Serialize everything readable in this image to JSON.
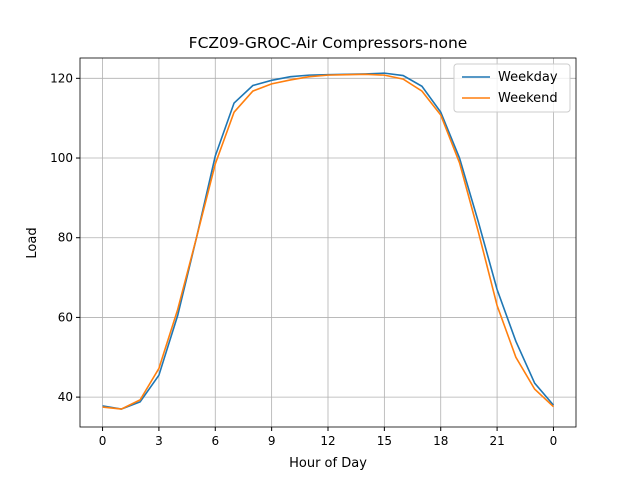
{
  "chart_data": {
    "type": "line",
    "title": "FCZ09-GROC-Air Compressors-none",
    "xlabel": "Hour of Day",
    "ylabel": "Load",
    "x": [
      0,
      1,
      2,
      3,
      4,
      5,
      6,
      7,
      8,
      9,
      10,
      11,
      12,
      13,
      14,
      15,
      16,
      17,
      18,
      19,
      20,
      21,
      22,
      23,
      24
    ],
    "series": [
      {
        "name": "Weekday",
        "color": "#1f77b4",
        "values": [
          37.8,
          37.0,
          38.8,
          45.5,
          60.5,
          80,
          100.5,
          113.8,
          118.2,
          119.5,
          120.4,
          120.8,
          120.9,
          121.0,
          121.1,
          121.3,
          120.7,
          118.0,
          111.5,
          100,
          84,
          67,
          54,
          43.5,
          38
        ]
      },
      {
        "name": "Weekend",
        "color": "#ff7f0e",
        "values": [
          37.5,
          37.0,
          39.3,
          47.2,
          62,
          80,
          98.5,
          111.5,
          116.8,
          118.6,
          119.6,
          120.4,
          120.8,
          120.9,
          121.0,
          120.8,
          119.8,
          116.8,
          110.8,
          98.8,
          81.5,
          63,
          50,
          42,
          37.6
        ]
      }
    ],
    "xlim": [
      -1.2,
      25.2
    ],
    "ylim": [
      32.5,
      125.1
    ],
    "xticks": [
      0,
      3,
      6,
      9,
      12,
      15,
      18,
      21,
      {
        "value": 24,
        "label": "0"
      }
    ],
    "yticks": [
      40,
      60,
      80,
      100,
      120
    ],
    "grid": true,
    "legend": "upper right"
  }
}
